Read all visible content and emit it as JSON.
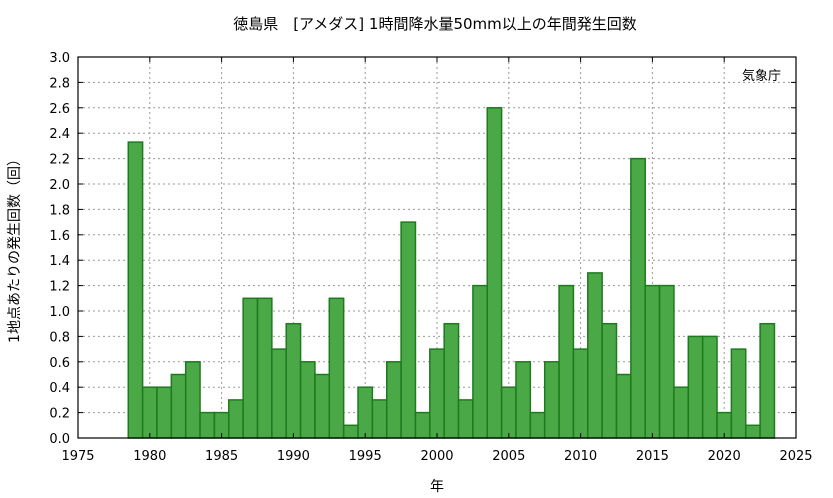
{
  "chart_data": {
    "type": "bar",
    "title": "徳島県　[アメダス] 1時間降水量50mm以上の年間発生回数",
    "xlabel": "年",
    "ylabel": "1地点あたりの発生回数（回）",
    "credit": "気象庁",
    "xlim": [
      1975,
      2025
    ],
    "ylim": [
      0,
      3.0
    ],
    "x_ticks": [
      1975,
      1980,
      1985,
      1990,
      1995,
      2000,
      2005,
      2010,
      2015,
      2020,
      2025
    ],
    "y_ticks": [
      "0.0",
      "0.2",
      "0.4",
      "0.6",
      "0.8",
      "1.0",
      "1.2",
      "1.4",
      "1.6",
      "1.8",
      "2.0",
      "2.2",
      "2.4",
      "2.6",
      "2.8",
      "3.0"
    ],
    "grid": true,
    "bar_color": "#4aa847",
    "bar_edge_color": "#1f7a1f",
    "x": [
      1979,
      1980,
      1981,
      1982,
      1983,
      1984,
      1985,
      1986,
      1987,
      1988,
      1989,
      1990,
      1991,
      1992,
      1993,
      1994,
      1995,
      1996,
      1997,
      1998,
      1999,
      2000,
      2001,
      2002,
      2003,
      2004,
      2005,
      2006,
      2007,
      2008,
      2009,
      2010,
      2011,
      2012,
      2013,
      2014,
      2015,
      2016,
      2017,
      2018,
      2019,
      2020,
      2021,
      2022,
      2023
    ],
    "values": [
      2.33,
      0.4,
      0.4,
      0.5,
      0.6,
      0.2,
      0.2,
      0.3,
      1.1,
      1.1,
      0.7,
      0.9,
      0.6,
      0.5,
      1.1,
      0.1,
      0.4,
      0.3,
      0.6,
      1.7,
      0.2,
      0.7,
      0.9,
      0.3,
      1.2,
      2.6,
      0.4,
      0.6,
      0.2,
      0.6,
      1.2,
      0.7,
      1.3,
      0.9,
      0.5,
      2.2,
      1.2,
      1.2,
      0.4,
      0.8,
      0.8,
      0.2,
      0.7,
      0.1,
      0.9
    ]
  }
}
